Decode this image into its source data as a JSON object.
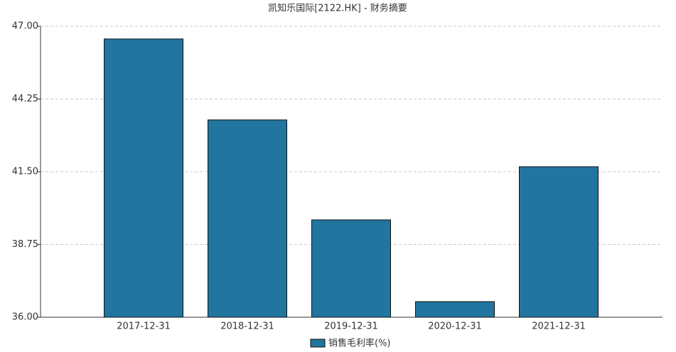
{
  "chart_data": {
    "type": "bar",
    "title": "凯知乐国际[2122.HK] - 财务摘要",
    "categories": [
      "2017-12-31",
      "2018-12-31",
      "2019-12-31",
      "2020-12-31",
      "2021-12-31"
    ],
    "series": [
      {
        "name": "销售毛利率(%)",
        "color": "#21759f",
        "values": [
          46.52,
          43.46,
          39.68,
          36.59,
          41.69
        ]
      }
    ],
    "ylim": [
      36,
      47
    ],
    "yticks": [
      {
        "value": 36,
        "label": "36.00"
      },
      {
        "value": 38.75,
        "label": "38.75"
      },
      {
        "value": 41.5,
        "label": "41.50"
      },
      {
        "value": 44.25,
        "label": "44.25"
      },
      {
        "value": 47,
        "label": "47.00"
      }
    ],
    "grid": true,
    "legend": "bottom"
  }
}
